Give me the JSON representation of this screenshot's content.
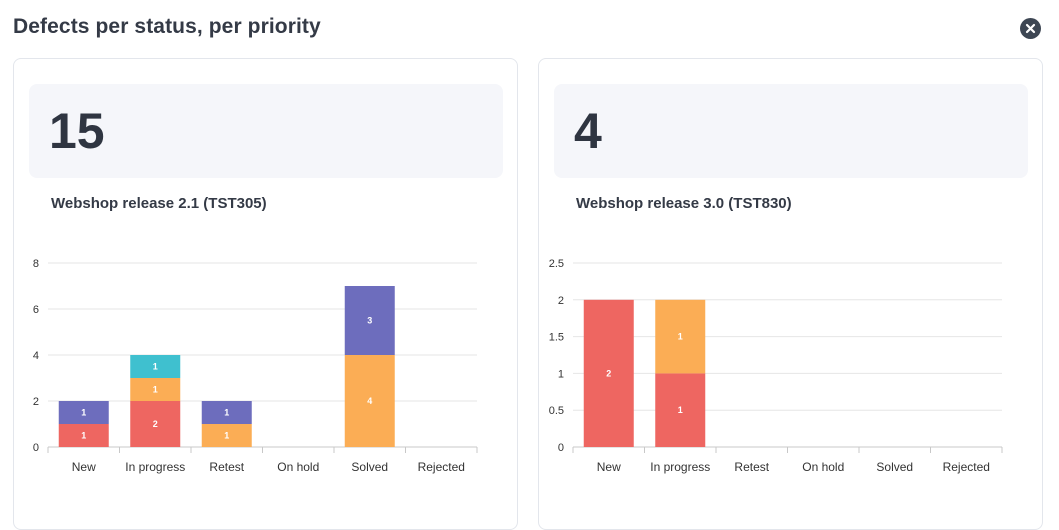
{
  "header": {
    "title": "Defects per status, per priority"
  },
  "colors": {
    "red": "#ee6661",
    "orange": "#fbad55",
    "purple": "#6d6dbd",
    "teal": "#3fc0cf"
  },
  "panels": [
    {
      "kpi_value": "15",
      "release_name": "Webshop release 2.1 (TST305)"
    },
    {
      "kpi_value": "4",
      "release_name": "Webshop release 3.0 (TST830)"
    }
  ],
  "chart_data": [
    {
      "type": "bar",
      "stacked": true,
      "categories": [
        "New",
        "In progress",
        "Retest",
        "On hold",
        "Solved",
        "Rejected"
      ],
      "ylim": [
        0,
        8
      ],
      "yticks": [
        0,
        2,
        4,
        6,
        8
      ],
      "grid": true,
      "series": [
        {
          "color": "red",
          "values": [
            1,
            2,
            0,
            0,
            0,
            0
          ]
        },
        {
          "color": "orange",
          "values": [
            0,
            1,
            1,
            0,
            4,
            0
          ]
        },
        {
          "color": "purple",
          "values": [
            1,
            0,
            1,
            0,
            3,
            0
          ]
        },
        {
          "color": "teal",
          "values": [
            0,
            1,
            0,
            0,
            0,
            0
          ]
        }
      ]
    },
    {
      "type": "bar",
      "stacked": true,
      "categories": [
        "New",
        "In progress",
        "Retest",
        "On hold",
        "Solved",
        "Rejected"
      ],
      "ylim": [
        0,
        2.5
      ],
      "yticks": [
        0,
        0.5,
        1,
        1.5,
        2,
        2.5
      ],
      "grid": true,
      "series": [
        {
          "color": "red",
          "values": [
            2,
            1,
            0,
            0,
            0,
            0
          ]
        },
        {
          "color": "orange",
          "values": [
            0,
            1,
            0,
            0,
            0,
            0
          ]
        }
      ]
    }
  ]
}
